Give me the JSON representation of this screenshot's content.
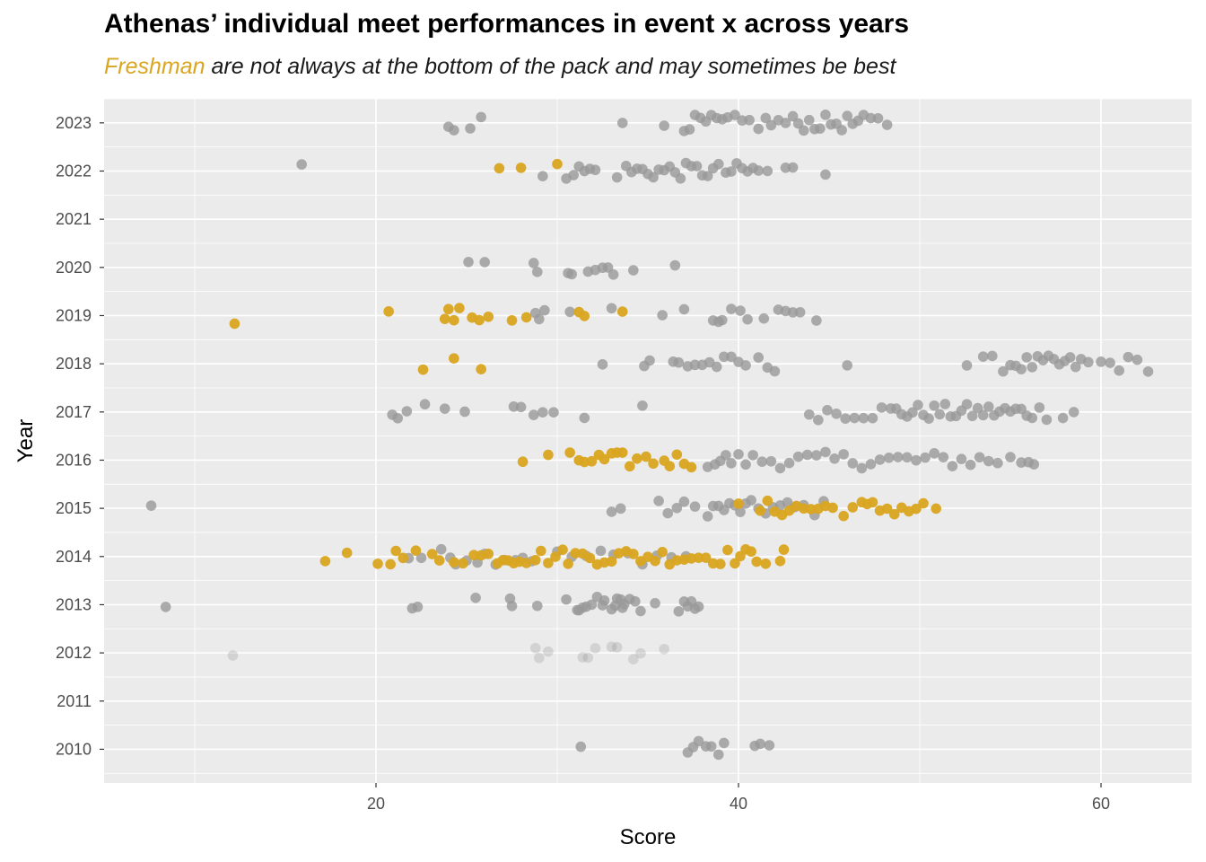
{
  "chart_data": {
    "type": "scatter",
    "title": "Athenas’ individual meet performances in event x across years",
    "subtitle_highlight": "Freshman",
    "subtitle_rest": " are not always at the bottom of the pack and may sometimes be best",
    "xlabel": "Score",
    "ylabel": "Year",
    "xlim": [
      5,
      65
    ],
    "ylim": [
      2009.3,
      2023.5
    ],
    "x_ticks": [
      20,
      40,
      60
    ],
    "y_ticks": [
      2010,
      2011,
      2012,
      2013,
      2014,
      2015,
      2016,
      2017,
      2018,
      2019,
      2020,
      2021,
      2022,
      2023
    ],
    "grid": true,
    "legend": "none",
    "colors": {
      "freshman": "#DAA520",
      "other": "#999999",
      "panel": "#EBEBEB",
      "grid": "#FFFFFF"
    },
    "series": [
      {
        "year": 2010,
        "other": [
          31.3,
          37.2,
          37.5,
          37.8,
          38.2,
          38.5,
          38.9,
          39.2,
          40.9,
          41.2,
          41.7
        ]
      },
      {
        "year": 2012,
        "faded": true,
        "other": [
          12.1,
          28.8,
          29.0,
          29.5,
          31.4,
          31.7,
          32.1,
          33.0,
          33.3,
          34.2,
          34.6,
          35.9
        ]
      },
      {
        "year": 2013,
        "other": [
          8.4,
          22.0,
          22.3,
          25.5,
          27.4,
          27.5,
          28.9,
          30.5,
          31.1,
          31.2,
          31.4,
          31.6,
          31.9,
          32.2,
          32.5,
          32.6,
          33.0,
          33.2,
          33.3,
          33.5,
          33.6,
          33.7,
          34.0,
          34.3,
          34.6,
          35.4,
          36.7,
          37.0,
          37.2,
          37.4,
          37.6,
          37.8
        ]
      },
      {
        "year": 2014,
        "freshman": [
          17.2,
          18.4,
          20.1,
          20.8,
          21.1,
          21.5,
          22.2,
          23.1,
          23.5,
          24.3,
          24.8,
          25.4,
          25.8,
          26.2,
          26.7,
          27.0,
          27.3,
          27.6,
          27.9,
          28.3,
          28.8,
          29.1,
          29.5,
          29.9,
          30.3,
          30.6,
          31.0,
          31.4,
          31.8,
          32.2,
          32.6,
          33.0,
          33.4,
          33.8,
          34.2,
          34.6,
          35.0,
          35.4,
          35.8,
          36.2,
          36.6,
          37.0,
          37.4,
          37.8,
          38.2,
          38.6,
          39.0,
          39.4,
          39.8,
          40.1,
          40.4,
          40.7,
          41.0,
          41.5,
          42.3,
          42.5
        ],
        "other": [
          21.8,
          22.5,
          23.6,
          24.1,
          24.4,
          25.0,
          25.6,
          26.0,
          26.6,
          27.1,
          27.7,
          28.1,
          28.6,
          30.0,
          30.8,
          31.6,
          32.4,
          33.1,
          33.9,
          34.7,
          35.5,
          36.3,
          37.1
        ]
      },
      {
        "year": 2015,
        "freshman": [
          40.0,
          41.2,
          41.6,
          42.0,
          42.4,
          42.8,
          43.2,
          43.6,
          44.0,
          44.4,
          44.8,
          45.2,
          45.8,
          46.3,
          46.8,
          47.1,
          47.4,
          47.8,
          48.2,
          48.6,
          49.0,
          49.4,
          49.8,
          50.2,
          50.9
        ],
        "other": [
          7.6,
          33.0,
          33.5,
          35.6,
          36.1,
          36.6,
          37.0,
          37.6,
          38.3,
          38.6,
          38.9,
          39.2,
          39.5,
          39.8,
          40.1,
          40.4,
          40.7,
          41.1,
          41.5,
          41.9,
          42.3,
          42.7,
          43.1,
          43.6,
          44.2,
          44.7
        ]
      },
      {
        "year": 2016,
        "freshman": [
          28.1,
          29.5,
          30.7,
          31.2,
          31.5,
          31.9,
          32.3,
          32.6,
          33.0,
          33.3,
          33.6,
          34.0,
          34.4,
          34.9,
          35.3,
          35.9,
          36.2,
          36.6,
          37.0,
          37.4
        ],
        "other": [
          38.3,
          38.7,
          39.0,
          39.3,
          39.6,
          40.0,
          40.4,
          40.8,
          41.3,
          41.8,
          42.3,
          42.8,
          43.3,
          43.8,
          44.3,
          44.8,
          45.3,
          45.8,
          46.3,
          46.8,
          47.3,
          47.8,
          48.3,
          48.8,
          49.3,
          49.8,
          50.3,
          50.8,
          51.3,
          51.8,
          52.3,
          52.8,
          53.3,
          53.8,
          54.3,
          55.0,
          55.6,
          56.0,
          56.3
        ]
      },
      {
        "year": 2017,
        "other": [
          20.9,
          21.2,
          21.7,
          22.7,
          23.8,
          24.9,
          27.6,
          28.0,
          28.7,
          29.2,
          29.8,
          31.5,
          34.7,
          43.9,
          44.4,
          44.9,
          45.4,
          45.9,
          46.4,
          46.9,
          47.4,
          47.9,
          48.4,
          48.7,
          49.0,
          49.3,
          49.6,
          49.9,
          50.2,
          50.5,
          50.8,
          51.1,
          51.4,
          51.7,
          52.0,
          52.3,
          52.6,
          52.9,
          53.2,
          53.5,
          53.8,
          54.1,
          54.4,
          54.7,
          55.0,
          55.3,
          55.6,
          55.9,
          56.2,
          56.6,
          57.0,
          57.9,
          58.5
        ]
      },
      {
        "year": 2018,
        "freshman": [
          22.6,
          24.3,
          25.8
        ],
        "other": [
          32.5,
          34.8,
          35.1,
          36.4,
          36.7,
          37.2,
          37.6,
          38.0,
          38.4,
          38.8,
          39.2,
          39.6,
          40.0,
          40.4,
          41.1,
          41.6,
          42.0,
          46.0,
          52.6,
          53.5,
          54.0,
          54.6,
          55.0,
          55.3,
          55.6,
          55.9,
          56.2,
          56.5,
          56.8,
          57.1,
          57.4,
          57.7,
          58.0,
          58.3,
          58.6,
          58.9,
          59.3,
          60.0,
          60.5,
          61.0,
          61.5,
          62.0,
          62.6
        ]
      },
      {
        "year": 2019,
        "freshman": [
          12.2,
          20.7,
          23.8,
          24.0,
          24.3,
          24.6,
          25.3,
          25.7,
          26.2,
          27.5,
          28.3,
          31.2,
          31.5,
          33.6
        ],
        "other": [
          28.8,
          29.0,
          29.3,
          30.7,
          33.0,
          35.8,
          37.0,
          38.6,
          38.9,
          39.1,
          39.6,
          40.1,
          40.5,
          41.4,
          42.2,
          42.6,
          43.0,
          43.4,
          44.3
        ]
      },
      {
        "year": 2020,
        "other": [
          25.1,
          26.0,
          28.7,
          28.9,
          30.6,
          30.8,
          31.7,
          32.1,
          32.5,
          32.8,
          33.1,
          34.2,
          36.5
        ]
      },
      {
        "year": 2021,
        "other": []
      },
      {
        "year": 2022,
        "freshman": [
          26.8,
          28.0,
          30.0
        ],
        "other": [
          15.9,
          29.2,
          30.5,
          30.9,
          31.2,
          31.5,
          31.8,
          32.1,
          33.3,
          33.8,
          34.1,
          34.4,
          34.7,
          35.0,
          35.3,
          35.6,
          35.9,
          36.2,
          36.5,
          36.8,
          37.1,
          37.4,
          37.7,
          38.0,
          38.3,
          38.6,
          38.9,
          39.3,
          39.6,
          39.9,
          40.2,
          40.5,
          40.8,
          41.1,
          41.6,
          42.6,
          43.0,
          44.8
        ]
      },
      {
        "year": 2023,
        "other": [
          24.0,
          24.3,
          25.2,
          25.8,
          33.6,
          35.9,
          37.0,
          37.3,
          37.6,
          37.9,
          38.2,
          38.5,
          38.8,
          39.1,
          39.4,
          39.8,
          40.2,
          40.6,
          41.1,
          41.5,
          41.8,
          42.2,
          42.6,
          43.0,
          43.3,
          43.6,
          43.9,
          44.2,
          44.5,
          44.8,
          45.1,
          45.4,
          45.7,
          46.0,
          46.3,
          46.6,
          46.9,
          47.3,
          47.7,
          48.2
        ]
      }
    ]
  }
}
